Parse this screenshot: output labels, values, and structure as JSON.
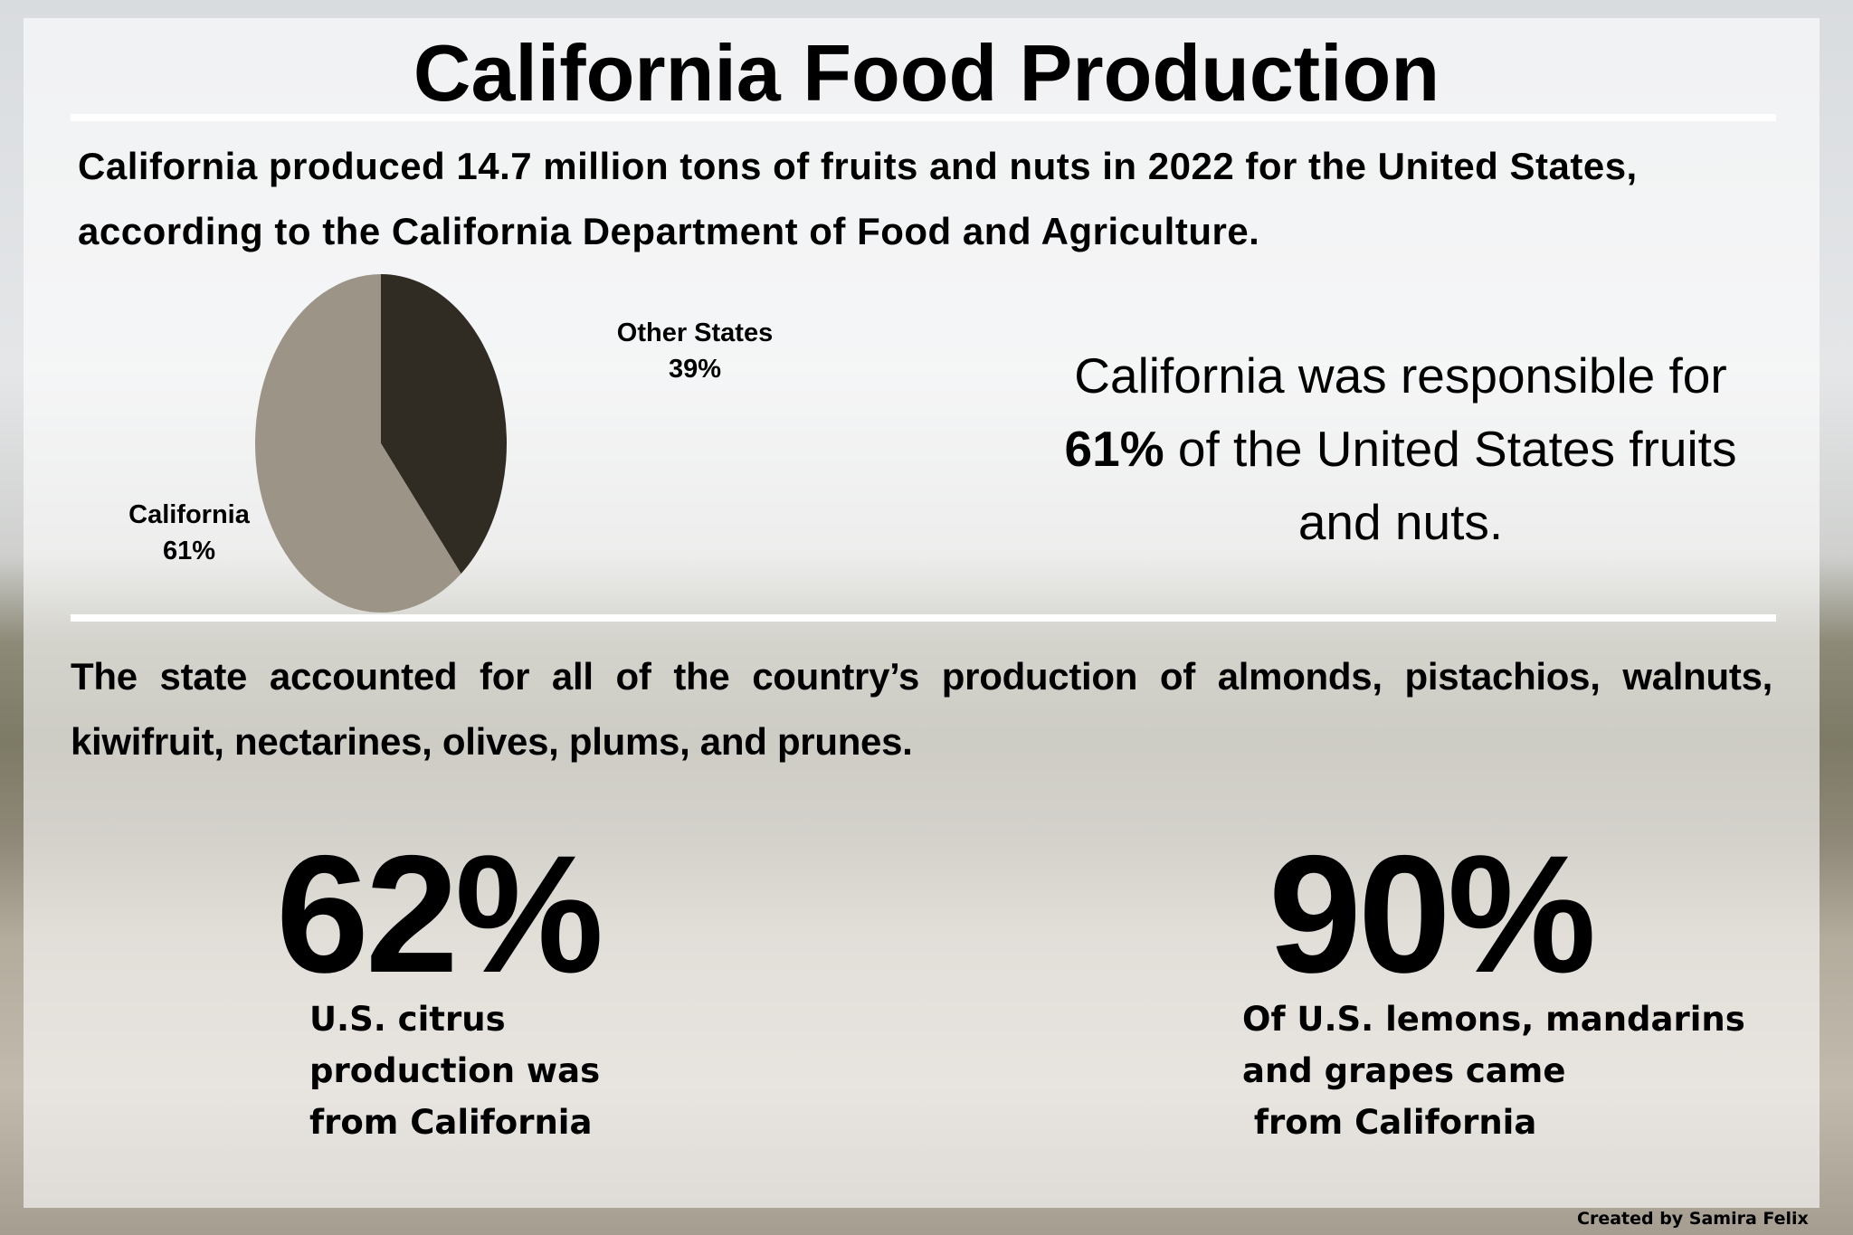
{
  "title": "California Food Production",
  "subtitle": "California produced 14.7 million tons of fruits and nuts in 2022 for the United States, according to the California Department of Food and Agriculture.",
  "chart_data": {
    "type": "pie",
    "title": "",
    "slices": [
      {
        "label": "Other States",
        "value": 39,
        "display": "39%",
        "color": "#302b23"
      },
      {
        "label": "California",
        "value": 61,
        "display": "61%",
        "color": "#9c9486"
      }
    ]
  },
  "responsibility": {
    "before": "California was responsible for ",
    "highlight": "61%",
    "after": " of the United States fruits and nuts."
  },
  "paragraph": "The state accounted for all of the country’s production of almonds, pistachios, walnuts, kiwifruit, nectarines, olives, plums, and prunes.",
  "stats": [
    {
      "value": "62%",
      "caption": "U.S. citrus\nproduction was\nfrom California"
    },
    {
      "value": "90%",
      "caption": "Of U.S. lemons, mandarins\nand grapes came\n from California"
    }
  ],
  "credit": "Created by Samira Felix"
}
